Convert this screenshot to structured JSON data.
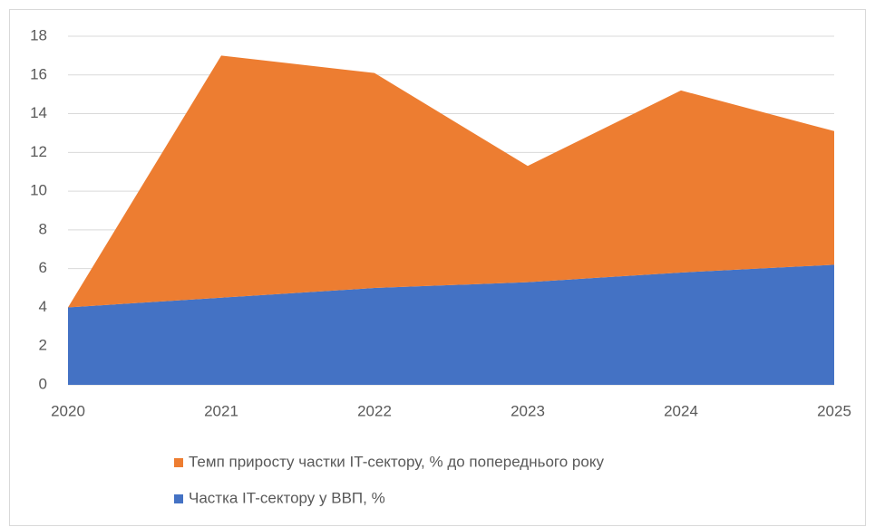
{
  "chart_data": {
    "type": "stacked_area",
    "x": [
      2020,
      2021,
      2022,
      2023,
      2024,
      2025
    ],
    "xlim": [
      2020,
      2025
    ],
    "xticks": [
      2020,
      2021,
      2022,
      2023,
      2024,
      2025
    ],
    "ylim": [
      0,
      18
    ],
    "yticks": [
      0,
      2,
      4,
      6,
      8,
      10,
      12,
      14,
      16,
      18
    ],
    "grid": true,
    "legend": "bottom",
    "series": [
      {
        "name": "Частка IT-сектору у ВВП, %",
        "color": "#4472c4",
        "values": [
          4.0,
          4.5,
          5.0,
          5.3,
          5.8,
          6.2
        ]
      },
      {
        "name": "Темп приросту частки IT-сектору, % до попереднього року",
        "color": "#ed7d31",
        "values": [
          0.0,
          12.5,
          11.1,
          6.0,
          9.4,
          6.9
        ]
      }
    ]
  }
}
